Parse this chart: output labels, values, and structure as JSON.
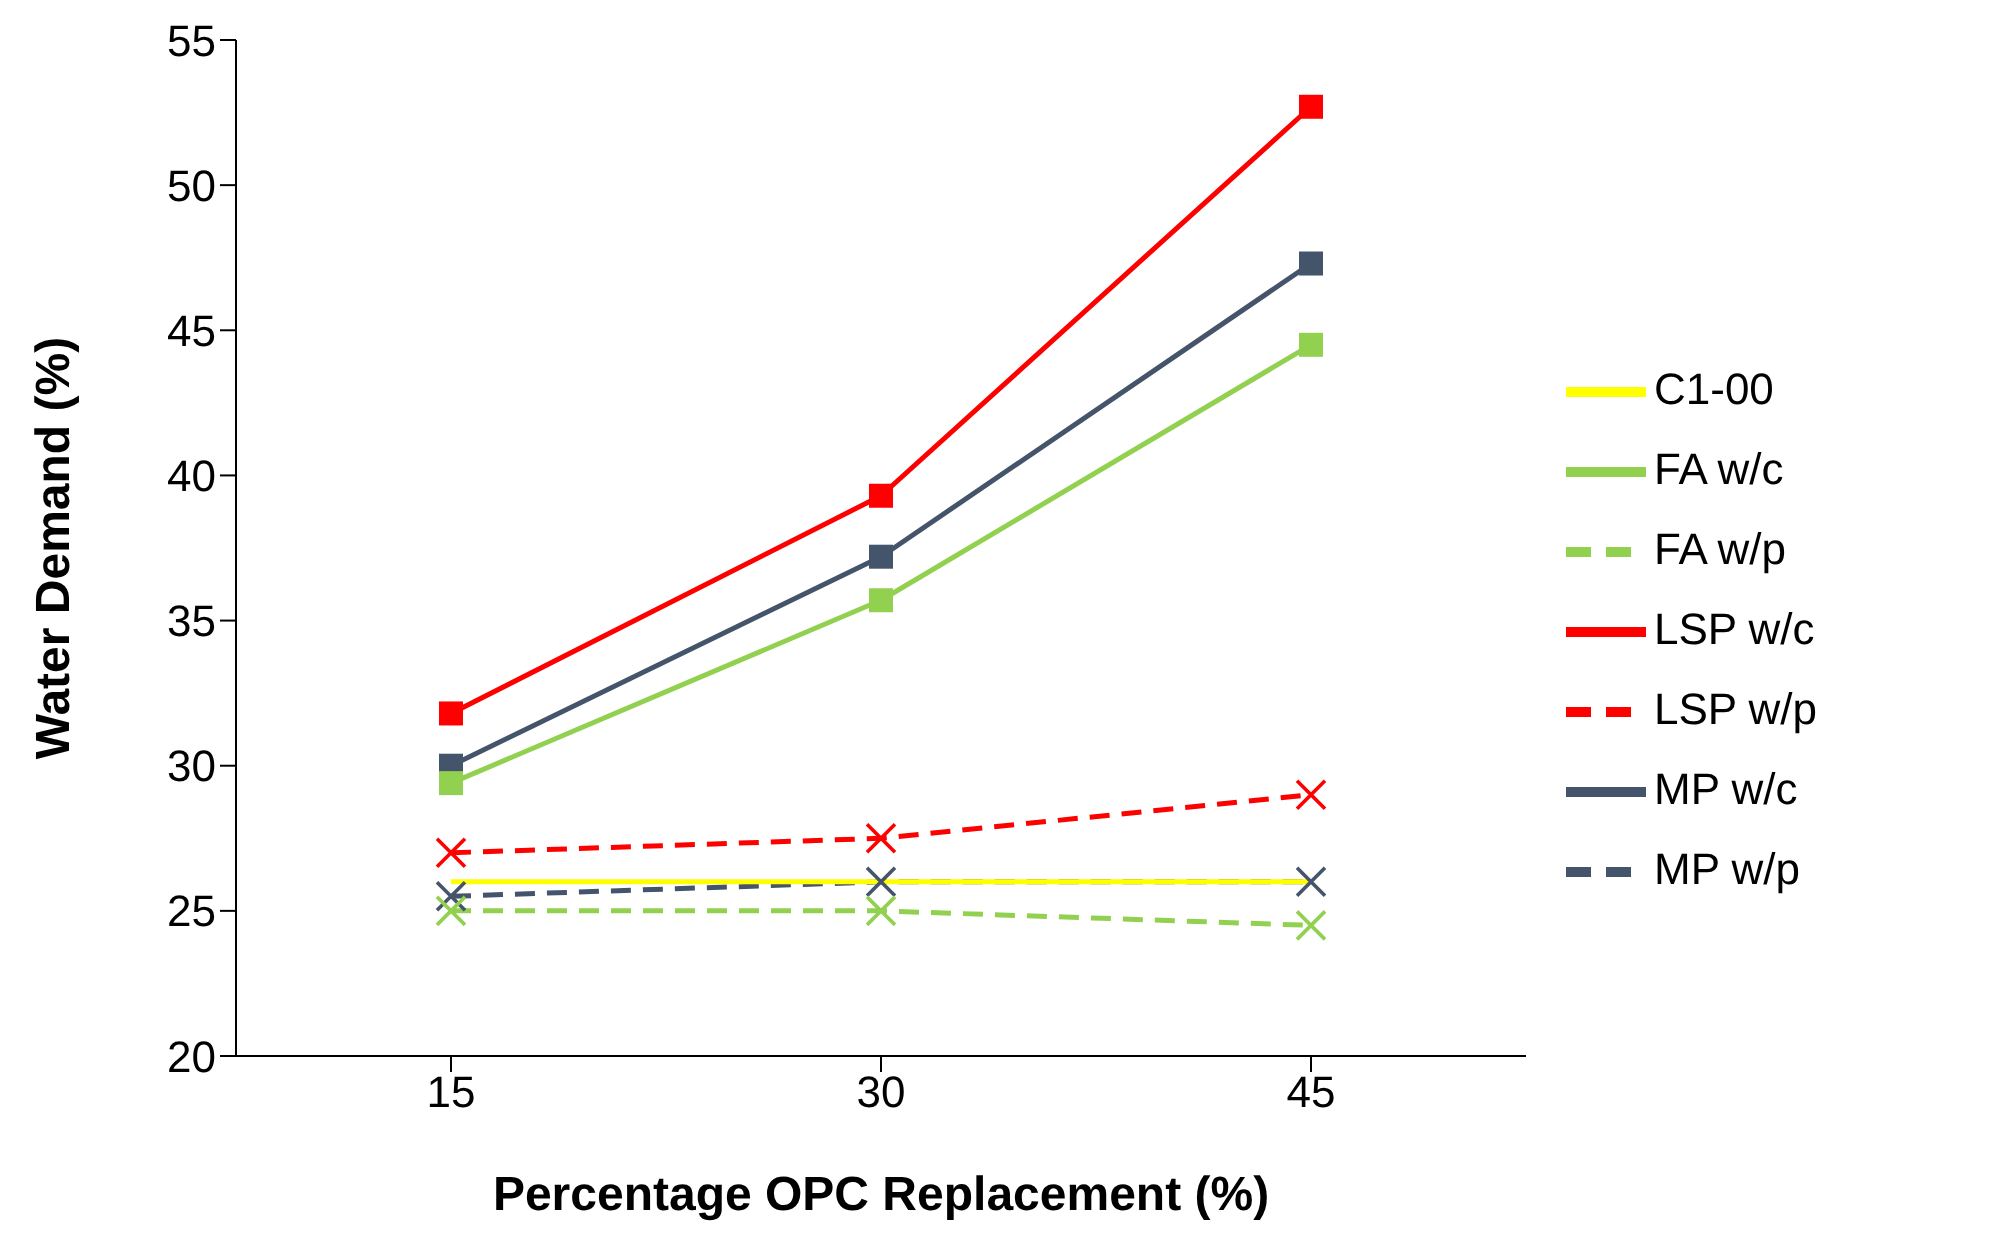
{
  "chart_data": {
    "type": "line",
    "xlabel": "Percentage OPC Replacement (%)",
    "ylabel": "Water Demand (%)",
    "categories": [
      "15",
      "30",
      "45"
    ],
    "ylim": [
      20,
      55
    ],
    "yticks": [
      20,
      25,
      30,
      35,
      40,
      45,
      50,
      55
    ],
    "grid": false,
    "legend": "right",
    "series": [
      {
        "name": "MP w/p",
        "color": "#44546a",
        "values": [
          25.5,
          26,
          26
        ],
        "marker": "cross",
        "line_style": "dashed"
      },
      {
        "name": "MP w/c",
        "color": "#44546a",
        "values": [
          30,
          37.2,
          47.3
        ],
        "marker": "square",
        "line_style": "solid"
      },
      {
        "name": "FA w/p",
        "color": "#92d050",
        "values": [
          25,
          25,
          24.5
        ],
        "marker": "cross",
        "line_style": "dashed"
      },
      {
        "name": "FA w/c",
        "color": "#92d050",
        "values": [
          29.4,
          35.7,
          44.5
        ],
        "marker": "square",
        "line_style": "solid"
      },
      {
        "name": "LSP w/p",
        "color": "#ff0000",
        "values": [
          27,
          27.5,
          29
        ],
        "marker": "cross",
        "line_style": "dashed"
      },
      {
        "name": "LSP w/c",
        "color": "#ff0000",
        "values": [
          31.8,
          39.3,
          52.7
        ],
        "marker": "square",
        "line_style": "solid"
      },
      {
        "name": "C1-00",
        "color": "#ffff00",
        "values": [
          26,
          26,
          26
        ],
        "marker": "none",
        "line_style": "solid"
      }
    ]
  }
}
